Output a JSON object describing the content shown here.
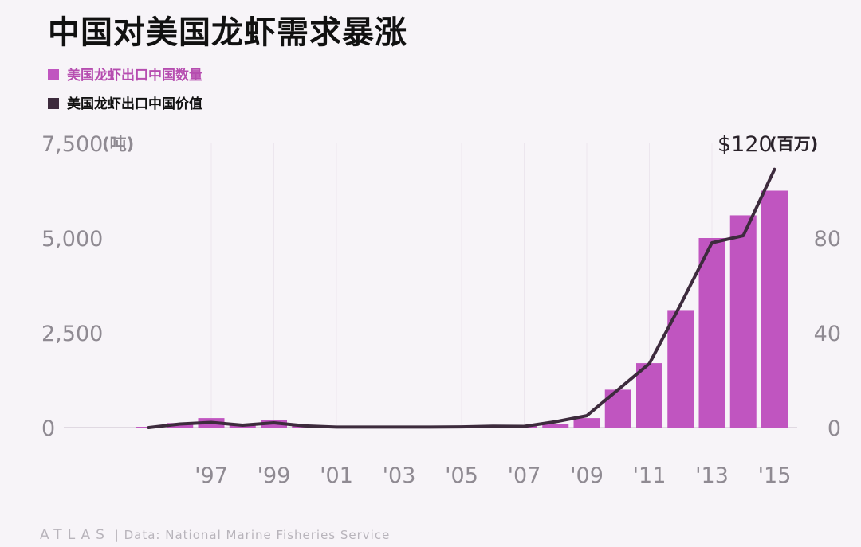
{
  "title": "中国对美国龙虾需求暴涨",
  "legend": {
    "quantity": "美国龙虾出口中国数量",
    "value": "美国龙虾出口中国价值"
  },
  "footer": {
    "brand": "ATLAS",
    "separator": "|",
    "source": "Data: National Marine Fisheries Service"
  },
  "colors": {
    "bar": "#c055c0",
    "line": "#3d2b3d",
    "legend_qty_text": "#b64db0",
    "grid": "#ece6ee"
  },
  "chart_data": {
    "type": "bar",
    "x_tick_labels": [
      "'97",
      "'99",
      "'01",
      "'03",
      "'05",
      "'07",
      "'09",
      "'11",
      "'13",
      "'15"
    ],
    "left_axis": {
      "top_label": "7,500",
      "unit": "(吨)",
      "ticks": [
        "0",
        "2,500",
        "5,000"
      ],
      "ylim": [
        0,
        7500
      ]
    },
    "right_axis": {
      "top_label": "$120",
      "unit": "(百万)",
      "ticks": [
        "0",
        "40",
        "80"
      ],
      "ylim": [
        0,
        120
      ]
    },
    "series": [
      {
        "name": "美国龙虾出口中国数量",
        "type": "bar",
        "axis": "left",
        "x": [
          1995,
          1996,
          1997,
          1998,
          1999,
          2000,
          2001,
          2002,
          2003,
          2004,
          2005,
          2006,
          2007,
          2008,
          2009,
          2010,
          2011,
          2012,
          2013,
          2014,
          2015
        ],
        "values": [
          20,
          120,
          250,
          80,
          200,
          60,
          20,
          20,
          15,
          20,
          20,
          60,
          50,
          100,
          250,
          1000,
          1700,
          3100,
          5000,
          5600,
          6250
        ]
      },
      {
        "name": "美国龙虾出口中国价值",
        "type": "line",
        "axis": "right",
        "x": [
          1995,
          1996,
          1997,
          1998,
          1999,
          2000,
          2001,
          2002,
          2003,
          2004,
          2005,
          2006,
          2007,
          2008,
          2009,
          2010,
          2011,
          2012,
          2013,
          2014,
          2015
        ],
        "values": [
          0,
          1.5,
          2.2,
          1.0,
          2.0,
          0.7,
          0.2,
          0.2,
          0.2,
          0.2,
          0.3,
          0.6,
          0.5,
          2.5,
          5,
          16,
          27,
          52,
          78,
          81,
          109
        ]
      }
    ]
  }
}
